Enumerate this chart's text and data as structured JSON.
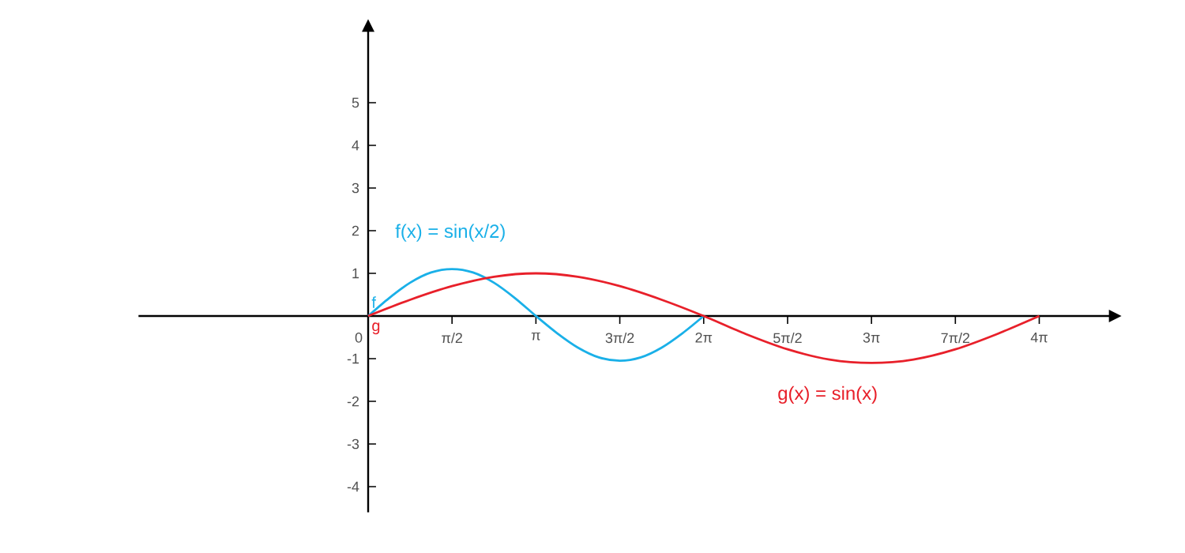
{
  "chart_data": {
    "type": "line",
    "xlim": [
      -4.3,
      13.9
    ],
    "ylim": [
      -4.6,
      6.7
    ],
    "xticks": [
      0,
      {
        "value": 1.5708,
        "label": "π/2"
      },
      {
        "value": 3.1416,
        "label": "π"
      },
      {
        "value": 4.7124,
        "label": "3π/2"
      },
      {
        "value": 6.2832,
        "label": "2π"
      },
      {
        "value": 7.854,
        "label": "5π/2"
      },
      {
        "value": 9.4248,
        "label": "3π"
      },
      {
        "value": 10.9956,
        "label": "7π/2"
      },
      {
        "value": 12.5664,
        "label": "4π"
      }
    ],
    "yticks": [
      -4,
      -3,
      -2,
      -1,
      1,
      2,
      3,
      4,
      5
    ],
    "series": [
      {
        "name": "f",
        "color": "#1ab0e8",
        "x": [
          0,
          0.3927,
          0.7854,
          1.1781,
          1.5708,
          1.9635,
          2.3562,
          2.7489,
          3.1416,
          3.5343,
          3.927,
          4.3197,
          4.7124,
          5.1051,
          5.4978,
          5.8905,
          6.2832
        ],
        "values": [
          0,
          0.42,
          0.78,
          1.02,
          1.1,
          1.02,
          0.78,
          0.42,
          0,
          -0.4,
          -0.74,
          -0.97,
          -1.05,
          -0.97,
          -0.74,
          -0.4,
          0
        ]
      },
      {
        "name": "g",
        "color": "#e8202a",
        "x": [
          0,
          0.7854,
          1.5708,
          2.3562,
          3.1416,
          3.927,
          4.7124,
          5.4978,
          6.2832,
          7.0686,
          7.854,
          8.6394,
          9.4248,
          10.2102,
          10.9956,
          11.781,
          12.5664
        ],
        "values": [
          0,
          0.38,
          0.7,
          0.92,
          1.0,
          0.92,
          0.7,
          0.38,
          0,
          -0.42,
          -0.78,
          -1.02,
          -1.1,
          -1.02,
          -0.78,
          -0.42,
          0
        ]
      }
    ],
    "annotations": [
      "f(x) = sin(x/2)",
      "g(x) = sin(x)"
    ],
    "legend": false,
    "grid": false,
    "marker": "none",
    "line_style": "solid"
  }
}
